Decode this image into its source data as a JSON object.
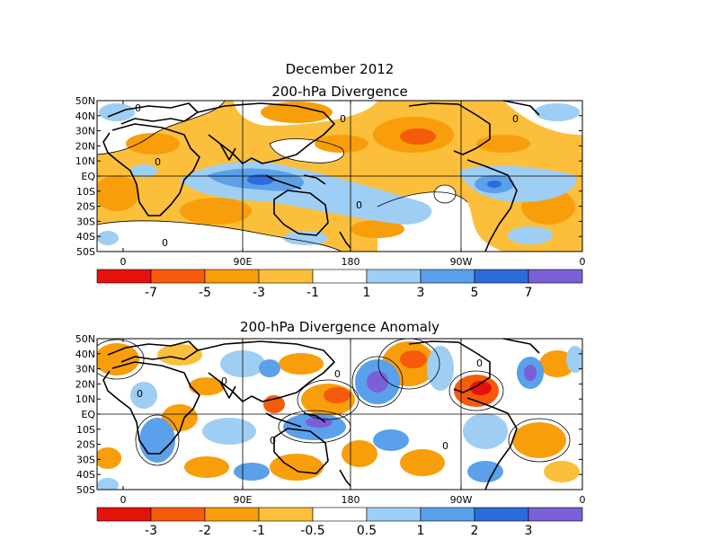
{
  "figure": {
    "title_line1": "December 2012",
    "title_line2": "200-hPa Divergence"
  },
  "panels": [
    {
      "title": "",
      "lat_labels": [
        "50N",
        "40N",
        "30N",
        "20N",
        "10N",
        "EQ",
        "10S",
        "20S",
        "30S",
        "40S",
        "50S"
      ],
      "lon_labels": [
        "0",
        "90E",
        "180",
        "90W",
        "0"
      ],
      "contour_zero_label": "0",
      "colorbar": {
        "labels": [
          "-7",
          "-5",
          "-3",
          "-1",
          "1",
          "3",
          "5",
          "7"
        ],
        "colors": [
          "#e5110b",
          "#f55b0b",
          "#f89e0b",
          "#fbbf3b",
          "#ffffff",
          "#9fcef4",
          "#5aa0ea",
          "#2d6bdb",
          "#7a5fd6"
        ]
      }
    },
    {
      "title": "200-hPa Divergence Anomaly",
      "lat_labels": [
        "50N",
        "40N",
        "30N",
        "20N",
        "10N",
        "EQ",
        "10S",
        "20S",
        "30S",
        "40S",
        "50S"
      ],
      "lon_labels": [
        "0",
        "90E",
        "180",
        "90W",
        "0"
      ],
      "contour_zero_label": "0",
      "colorbar": {
        "labels": [
          "-3",
          "-2",
          "-1",
          "-0.5",
          "0.5",
          "1",
          "2",
          "3"
        ],
        "colors": [
          "#e5110b",
          "#f55b0b",
          "#f89e0b",
          "#fbbf3b",
          "#ffffff",
          "#9fcef4",
          "#5aa0ea",
          "#2d6bdb",
          "#7a5fd6"
        ]
      }
    }
  ]
}
